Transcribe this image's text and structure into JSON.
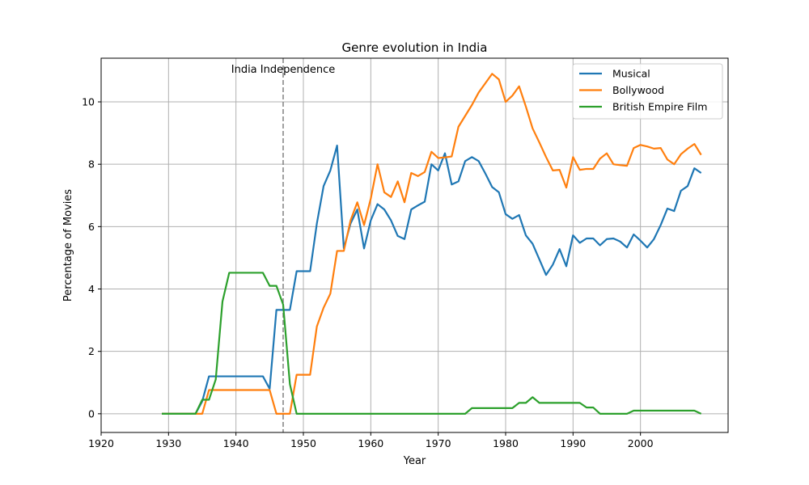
{
  "chart_data": {
    "type": "line",
    "title": "Genre evolution in India",
    "xlabel": "Year",
    "ylabel": "Percentage of Movies",
    "xlim": [
      1920,
      2013
    ],
    "ylim": [
      -0.6,
      11.4
    ],
    "xticks": [
      1920,
      1930,
      1940,
      1950,
      1960,
      1970,
      1980,
      1990,
      2000
    ],
    "yticks": [
      0,
      2,
      4,
      6,
      8,
      10
    ],
    "grid": true,
    "legend_position": "top-right",
    "x": [
      1929,
      1930,
      1931,
      1932,
      1933,
      1934,
      1935,
      1936,
      1937,
      1938,
      1939,
      1940,
      1941,
      1942,
      1943,
      1944,
      1945,
      1946,
      1947,
      1948,
      1949,
      1950,
      1951,
      1952,
      1953,
      1954,
      1955,
      1956,
      1957,
      1958,
      1959,
      1960,
      1961,
      1962,
      1963,
      1964,
      1965,
      1966,
      1967,
      1968,
      1969,
      1970,
      1971,
      1972,
      1973,
      1974,
      1975,
      1976,
      1977,
      1978,
      1979,
      1980,
      1981,
      1982,
      1983,
      1984,
      1985,
      1986,
      1987,
      1988,
      1989,
      1990,
      1991,
      1992,
      1993,
      1994,
      1995,
      1996,
      1997,
      1998,
      1999,
      2000,
      2001,
      2002,
      2003,
      2004,
      2005,
      2006,
      2007,
      2008,
      2009
    ],
    "series": [
      {
        "name": "Musical",
        "color": "#1f77b4",
        "values": [
          0,
          0,
          0,
          0,
          0,
          0,
          0.4,
          1.2,
          1.2,
          1.2,
          1.2,
          1.2,
          1.2,
          1.2,
          1.2,
          1.2,
          0.8,
          3.33,
          3.33,
          3.33,
          4.57,
          4.57,
          4.57,
          6.1,
          7.3,
          7.8,
          8.6,
          5.3,
          6.1,
          6.55,
          5.3,
          6.2,
          6.72,
          6.55,
          6.2,
          5.7,
          5.6,
          6.55,
          6.68,
          6.8,
          8.0,
          7.8,
          8.35,
          7.35,
          7.45,
          8.1,
          8.23,
          8.1,
          7.7,
          7.27,
          7.1,
          6.4,
          6.25,
          6.37,
          5.72,
          5.45,
          4.95,
          4.45,
          4.78,
          5.28,
          4.73,
          5.72,
          5.48,
          5.62,
          5.62,
          5.4,
          5.6,
          5.62,
          5.52,
          5.33,
          5.75,
          5.55,
          5.33,
          5.6,
          6.05,
          6.58,
          6.5,
          7.15,
          7.3,
          7.87,
          7.72
        ]
      },
      {
        "name": "Bollywood",
        "color": "#ff7f0e",
        "values": [
          0,
          0,
          0,
          0,
          0,
          0,
          0,
          0.76,
          0.76,
          0.76,
          0.76,
          0.76,
          0.76,
          0.76,
          0.76,
          0.76,
          0.76,
          0,
          0,
          0,
          1.25,
          1.25,
          1.25,
          2.8,
          3.4,
          3.85,
          5.22,
          5.22,
          6.2,
          6.78,
          6.05,
          6.9,
          8.0,
          7.1,
          6.95,
          7.45,
          6.78,
          7.72,
          7.62,
          7.75,
          8.4,
          8.2,
          8.22,
          8.25,
          9.2,
          9.55,
          9.9,
          10.3,
          10.6,
          10.9,
          10.72,
          10.0,
          10.2,
          10.5,
          9.85,
          9.15,
          8.7,
          8.23,
          7.8,
          7.82,
          7.25,
          8.23,
          7.82,
          7.85,
          7.85,
          8.18,
          8.35,
          8.0,
          7.97,
          7.95,
          8.52,
          8.62,
          8.57,
          8.5,
          8.52,
          8.15,
          8.0,
          8.32,
          8.5,
          8.65,
          8.3
        ]
      },
      {
        "name": "British Empire Film",
        "color": "#2ca02c",
        "values": [
          0,
          0,
          0,
          0,
          0,
          0,
          0.45,
          0.45,
          1.1,
          3.6,
          4.52,
          4.52,
          4.52,
          4.52,
          4.52,
          4.52,
          4.1,
          4.1,
          3.5,
          0.95,
          0,
          0,
          0,
          0,
          0,
          0,
          0,
          0,
          0,
          0,
          0,
          0,
          0,
          0,
          0,
          0,
          0,
          0,
          0,
          0,
          0,
          0,
          0,
          0,
          0,
          0,
          0.18,
          0.18,
          0.18,
          0.18,
          0.18,
          0.18,
          0.18,
          0.35,
          0.35,
          0.53,
          0.35,
          0.35,
          0.35,
          0.35,
          0.35,
          0.35,
          0.35,
          0.2,
          0.2,
          0,
          0,
          0,
          0,
          0,
          0.1,
          0.1,
          0.1,
          0.1,
          0.1,
          0.1,
          0.1,
          0.1,
          0.1,
          0.1,
          0
        ]
      }
    ],
    "annotations": [
      {
        "text": "India Independence",
        "x": 1947,
        "style": "vertical-dashed-line"
      }
    ]
  }
}
